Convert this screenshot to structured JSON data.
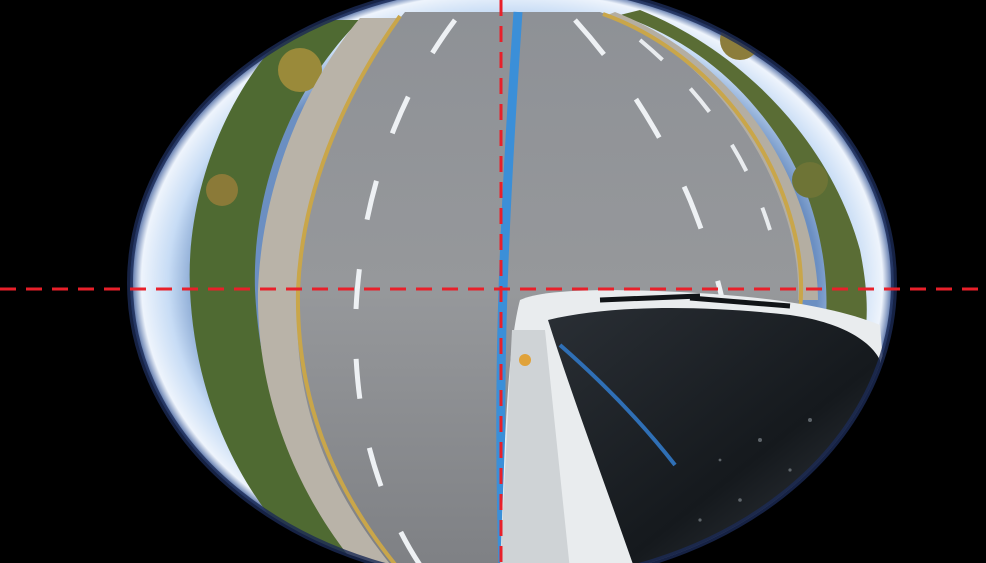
{
  "image": {
    "kind": "fisheye-camera-view",
    "subject": "road-with-bus",
    "overlay": {
      "crosshair": "dashed",
      "crosshair_color": "#e8202a"
    },
    "colors": {
      "vignette": "#000000",
      "road": "#8a8d92",
      "lane_marking": "#f2f4f6",
      "blue_lane_line": "#3b8fd8",
      "bus_body": "#e9ecee",
      "windshield": "#1a1e22",
      "sky_ring": "#c7dcf5"
    }
  }
}
